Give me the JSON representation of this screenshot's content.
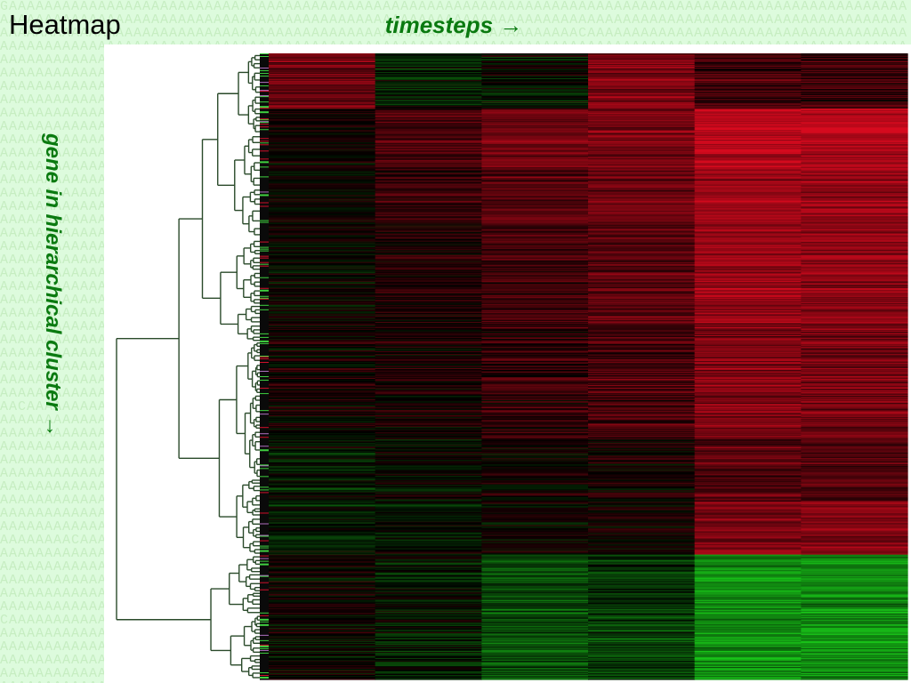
{
  "slide": {
    "title": "Heatmap",
    "background_color": "#ddfbdd",
    "label_color": "#0a7a10"
  },
  "chart_data": {
    "type": "heatmap",
    "title": "",
    "xlabel": "timesteps →",
    "ylabel": "gene in  hierarchical cluster →",
    "colormap": {
      "negative": "#19c819",
      "zero": "#000000",
      "positive": "#d70a1e",
      "range": [
        -1,
        1
      ]
    },
    "dendrogram": "left",
    "columns": 6,
    "row_clusters": [
      {
        "name": "",
        "rows": 62,
        "means": [
          0.5,
          -0.15,
          -0.05,
          0.6,
          0.3,
          0.25
        ]
      },
      {
        "name": "",
        "rows": 30,
        "means": [
          0.05,
          0.35,
          0.5,
          0.55,
          0.95,
          0.95
        ]
      },
      {
        "name": "",
        "rows": 40,
        "means": [
          0.05,
          0.35,
          0.5,
          0.55,
          0.85,
          0.8
        ]
      },
      {
        "name": "",
        "rows": 60,
        "means": [
          0.03,
          0.25,
          0.4,
          0.5,
          0.75,
          0.7
        ]
      },
      {
        "name": "",
        "rows": 110,
        "means": [
          0.02,
          0.15,
          0.3,
          0.4,
          0.7,
          0.65
        ]
      },
      {
        "name": "",
        "rows": 130,
        "means": [
          0.05,
          0.08,
          0.2,
          0.3,
          0.6,
          0.55
        ]
      },
      {
        "name": "",
        "rows": 70,
        "means": [
          -0.1,
          -0.03,
          0.03,
          0.1,
          0.4,
          0.35
        ]
      },
      {
        "name": "",
        "rows": 60,
        "means": [
          -0.15,
          -0.08,
          0.0,
          0.05,
          0.55,
          0.6
        ]
      },
      {
        "name": "",
        "rows": 140,
        "means": [
          0.02,
          -0.1,
          -0.4,
          -0.3,
          -0.7,
          -0.7
        ]
      }
    ]
  }
}
